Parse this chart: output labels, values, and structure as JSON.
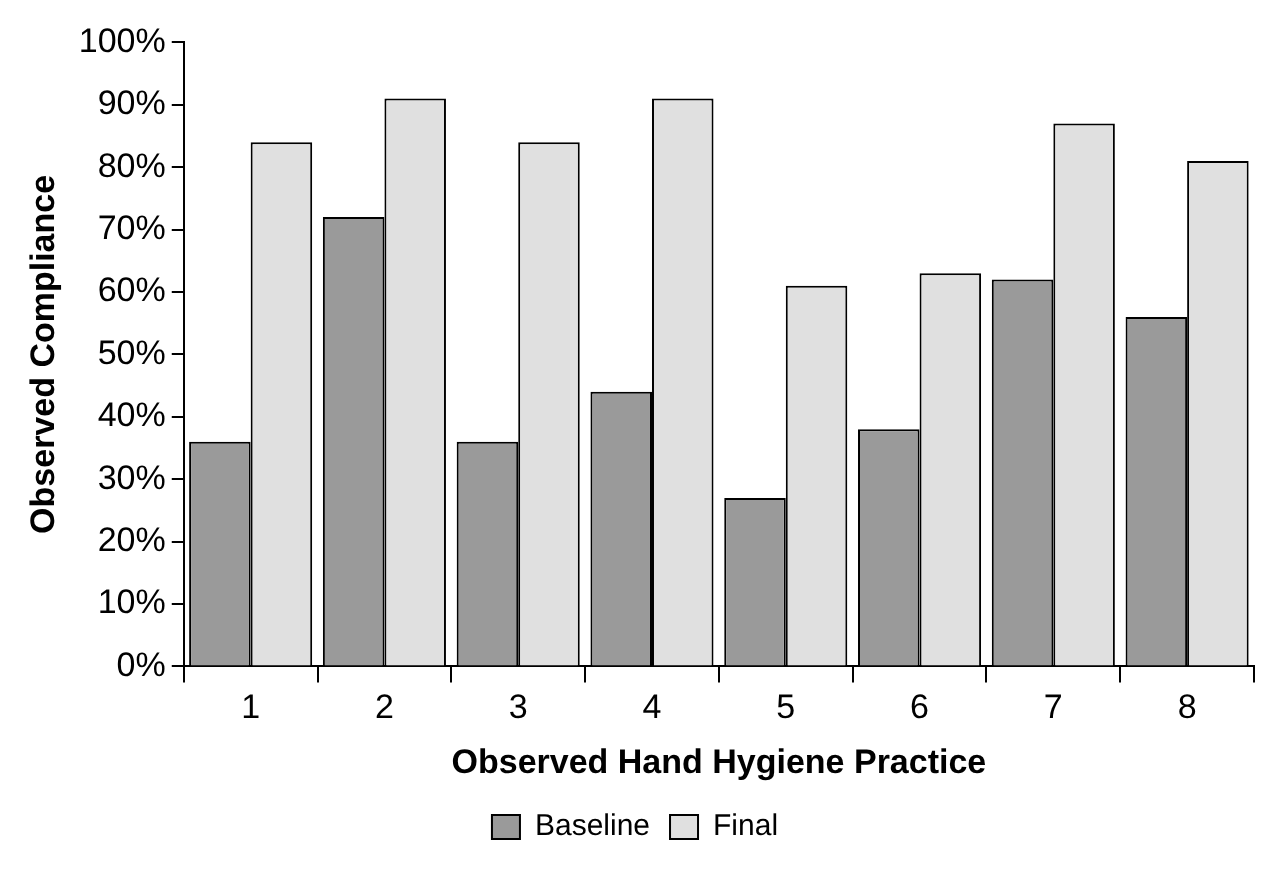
{
  "chart_data": {
    "type": "bar",
    "xlabel": "Observed Hand Hygiene Practice",
    "ylabel": "Observed Compliance",
    "categories": [
      "1",
      "2",
      "3",
      "4",
      "5",
      "6",
      "7",
      "8"
    ],
    "series": [
      {
        "name": "Baseline",
        "color": "#9a9a9a",
        "values": [
          36,
          72,
          36,
          44,
          27,
          38,
          62,
          56
        ]
      },
      {
        "name": "Final",
        "color": "#e0e0e0",
        "values": [
          84,
          91,
          84,
          91,
          61,
          63,
          87,
          81
        ]
      }
    ],
    "ylim": [
      0,
      100
    ],
    "yticks": [
      {
        "value": 0,
        "label": "0%"
      },
      {
        "value": 10,
        "label": "10%"
      },
      {
        "value": 20,
        "label": "20%"
      },
      {
        "value": 30,
        "label": "30%"
      },
      {
        "value": 40,
        "label": "40%"
      },
      {
        "value": 50,
        "label": "50%"
      },
      {
        "value": 60,
        "label": "60%"
      },
      {
        "value": 70,
        "label": "70%"
      },
      {
        "value": 80,
        "label": "80%"
      },
      {
        "value": 90,
        "label": "90%"
      },
      {
        "value": 100,
        "label": "100%"
      }
    ],
    "grid": false,
    "legend": "bottom"
  }
}
